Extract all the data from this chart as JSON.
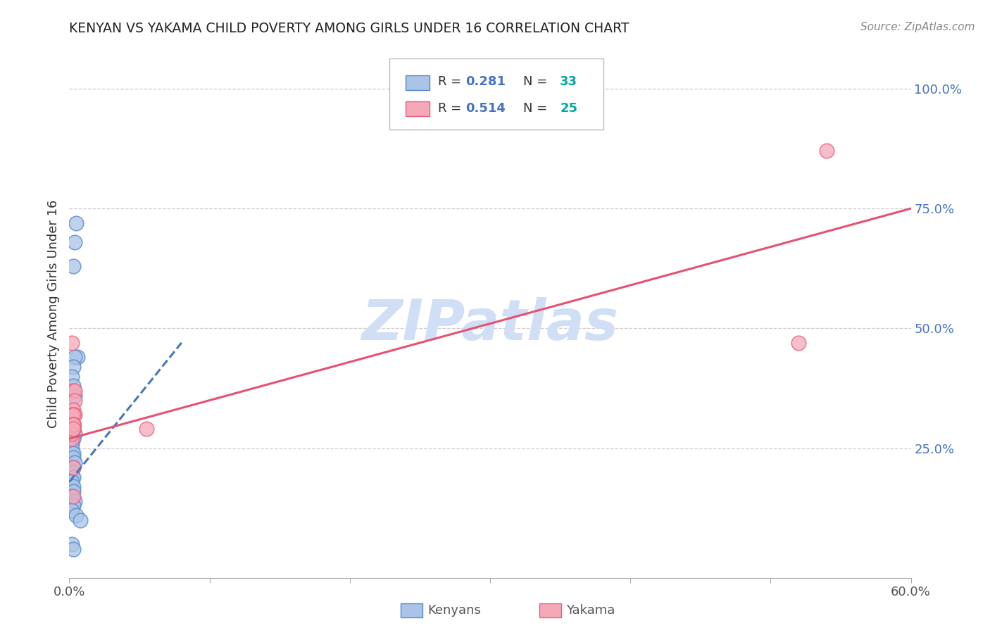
{
  "title": "KENYAN VS YAKAMA CHILD POVERTY AMONG GIRLS UNDER 16 CORRELATION CHART",
  "source": "Source: ZipAtlas.com",
  "ylabel": "Child Poverty Among Girls Under 16",
  "xlim": [
    0.0,
    0.6
  ],
  "ylim": [
    -0.02,
    1.08
  ],
  "xticks": [
    0.0,
    0.1,
    0.2,
    0.3,
    0.4,
    0.5,
    0.6
  ],
  "yticks_right": [
    0.25,
    0.5,
    0.75,
    1.0
  ],
  "ytick_labels_right": [
    "25.0%",
    "50.0%",
    "75.0%",
    "100.0%"
  ],
  "kenyan_color": "#aac4e8",
  "yakama_color": "#f5a8b8",
  "kenyan_edge_color": "#5588cc",
  "yakama_edge_color": "#e86080",
  "kenyan_line_color": "#4477bb",
  "yakama_line_color": "#e85070",
  "watermark": "ZIPatlas",
  "watermark_color": "#d0dff5",
  "legend_r1_val": "0.281",
  "legend_n1_val": "33",
  "legend_r2_val": "0.514",
  "legend_n2_val": "25",
  "kenyan_x": [
    0.004,
    0.005,
    0.003,
    0.006,
    0.004,
    0.003,
    0.002,
    0.003,
    0.004,
    0.003,
    0.002,
    0.003,
    0.004,
    0.003,
    0.002,
    0.002,
    0.003,
    0.003,
    0.004,
    0.003,
    0.002,
    0.003,
    0.002,
    0.003,
    0.003,
    0.002,
    0.004,
    0.003,
    0.002,
    0.005,
    0.008,
    0.002,
    0.003
  ],
  "kenyan_y": [
    0.68,
    0.72,
    0.63,
    0.44,
    0.44,
    0.42,
    0.4,
    0.38,
    0.36,
    0.32,
    0.3,
    0.29,
    0.28,
    0.27,
    0.26,
    0.25,
    0.24,
    0.23,
    0.22,
    0.21,
    0.2,
    0.19,
    0.18,
    0.17,
    0.16,
    0.15,
    0.14,
    0.13,
    0.12,
    0.11,
    0.1,
    0.05,
    0.04
  ],
  "yakama_x": [
    0.002,
    0.003,
    0.004,
    0.004,
    0.003,
    0.004,
    0.002,
    0.055,
    0.003,
    0.003,
    0.003,
    0.002,
    0.54,
    0.52,
    0.003,
    0.003,
    0.003,
    0.003,
    0.003,
    0.003,
    0.002,
    0.003,
    0.002,
    0.003,
    0.003
  ],
  "yakama_y": [
    0.47,
    0.37,
    0.37,
    0.35,
    0.33,
    0.32,
    0.32,
    0.29,
    0.3,
    0.3,
    0.29,
    0.27,
    0.87,
    0.47,
    0.21,
    0.15,
    0.32,
    0.3,
    0.29,
    0.3,
    0.29,
    0.3,
    0.28,
    0.3,
    0.29
  ],
  "kenyan_trend_x": [
    0.0,
    0.08
  ],
  "kenyan_trend_y": [
    0.18,
    0.47
  ],
  "yakama_trend_x": [
    0.0,
    0.6
  ],
  "yakama_trend_y": [
    0.27,
    0.75
  ]
}
